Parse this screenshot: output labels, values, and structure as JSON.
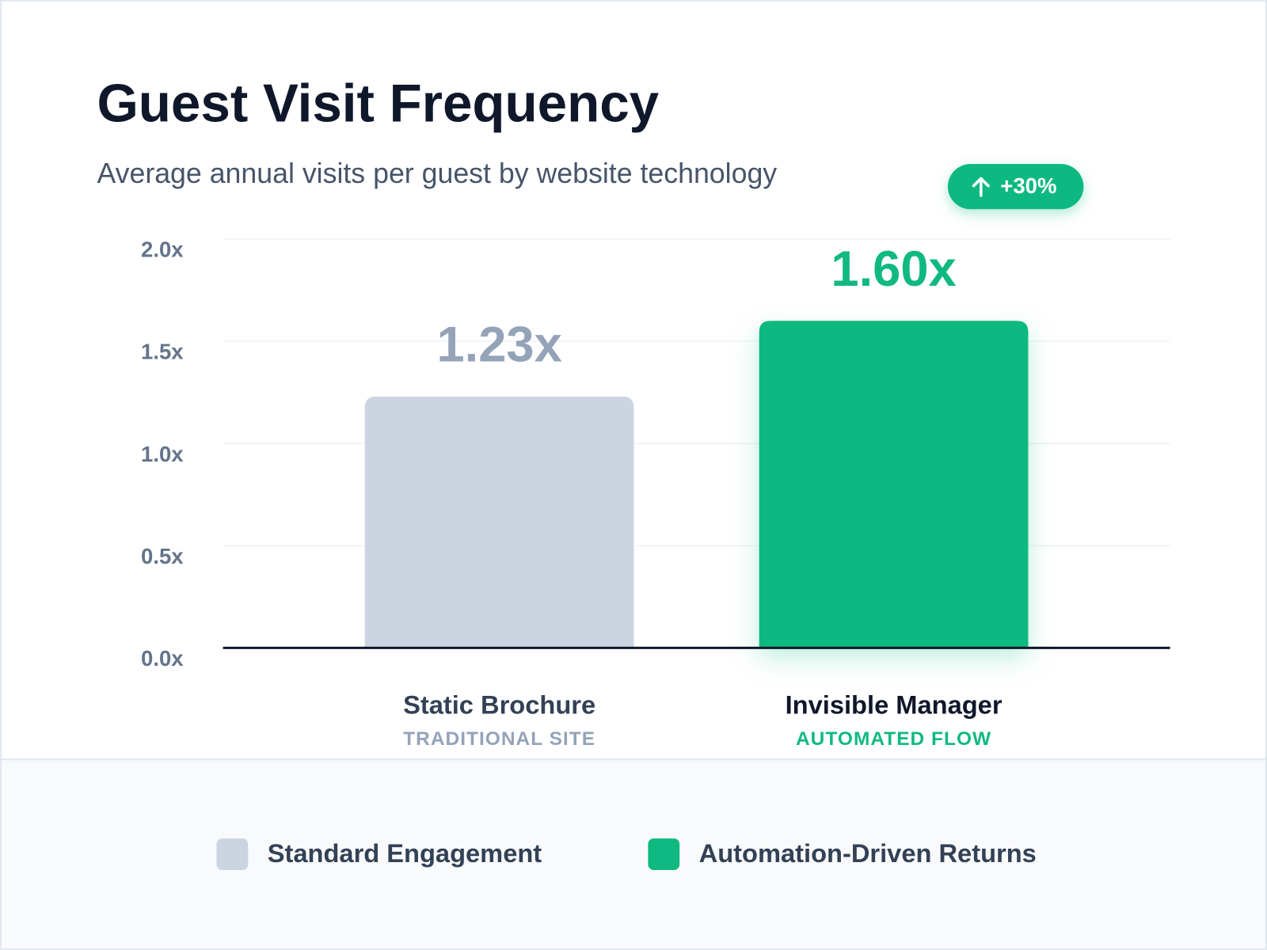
{
  "chart_data": {
    "type": "bar",
    "title": "Guest Visit Frequency",
    "subtitle": "Average annual visits per guest by website technology",
    "annotation": "+30%",
    "categories": [
      "Static Brochure",
      "Invisible Manager"
    ],
    "category_sublabels": [
      "TRADITIONAL SITE",
      "AUTOMATED FLOW"
    ],
    "series": [
      {
        "name": "Standard Engagement",
        "color": "#cbd5e1",
        "label_color": "#94a3b8",
        "values": [
          1.23,
          null
        ],
        "value_labels": [
          "1.23x",
          null
        ]
      },
      {
        "name": "Automation-Driven Returns",
        "color": "#10b981",
        "label_color": "#10b981",
        "values": [
          null,
          1.6
        ],
        "value_labels": [
          null,
          "1.60x"
        ]
      }
    ],
    "ylim": [
      0,
      2
    ],
    "yticks": [
      {
        "value": 0,
        "label": "0.0x"
      },
      {
        "value": 0.5,
        "label": "0.5x"
      },
      {
        "value": 1,
        "label": "1.0x"
      },
      {
        "value": 1.5,
        "label": "1.5x"
      },
      {
        "value": 2,
        "label": "2.0x"
      }
    ],
    "grid": true
  }
}
